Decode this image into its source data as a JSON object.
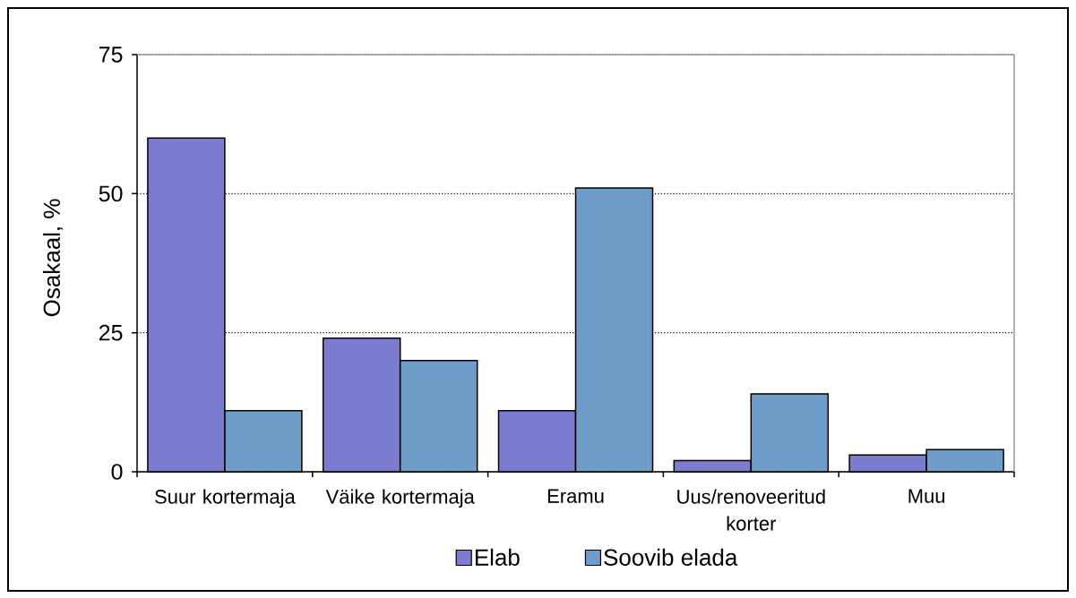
{
  "chart_data": {
    "type": "bar",
    "categories": [
      "Suur kortermaja",
      "Väike kortermaja",
      "Eramu",
      "Uus/renoveeritud korter",
      "Muu"
    ],
    "series": [
      {
        "name": "Elab",
        "color": "#7b7bd0",
        "values": [
          60,
          24,
          11,
          2,
          3
        ]
      },
      {
        "name": "Soovib elada",
        "color": "#6f9cc8",
        "values": [
          11,
          20,
          51,
          14,
          4
        ]
      }
    ],
    "ylabel": "Osakaal, %",
    "ylim": [
      0,
      75
    ],
    "yticks": [
      0,
      25,
      50,
      75
    ],
    "grid": "y",
    "legend": "bottom"
  }
}
